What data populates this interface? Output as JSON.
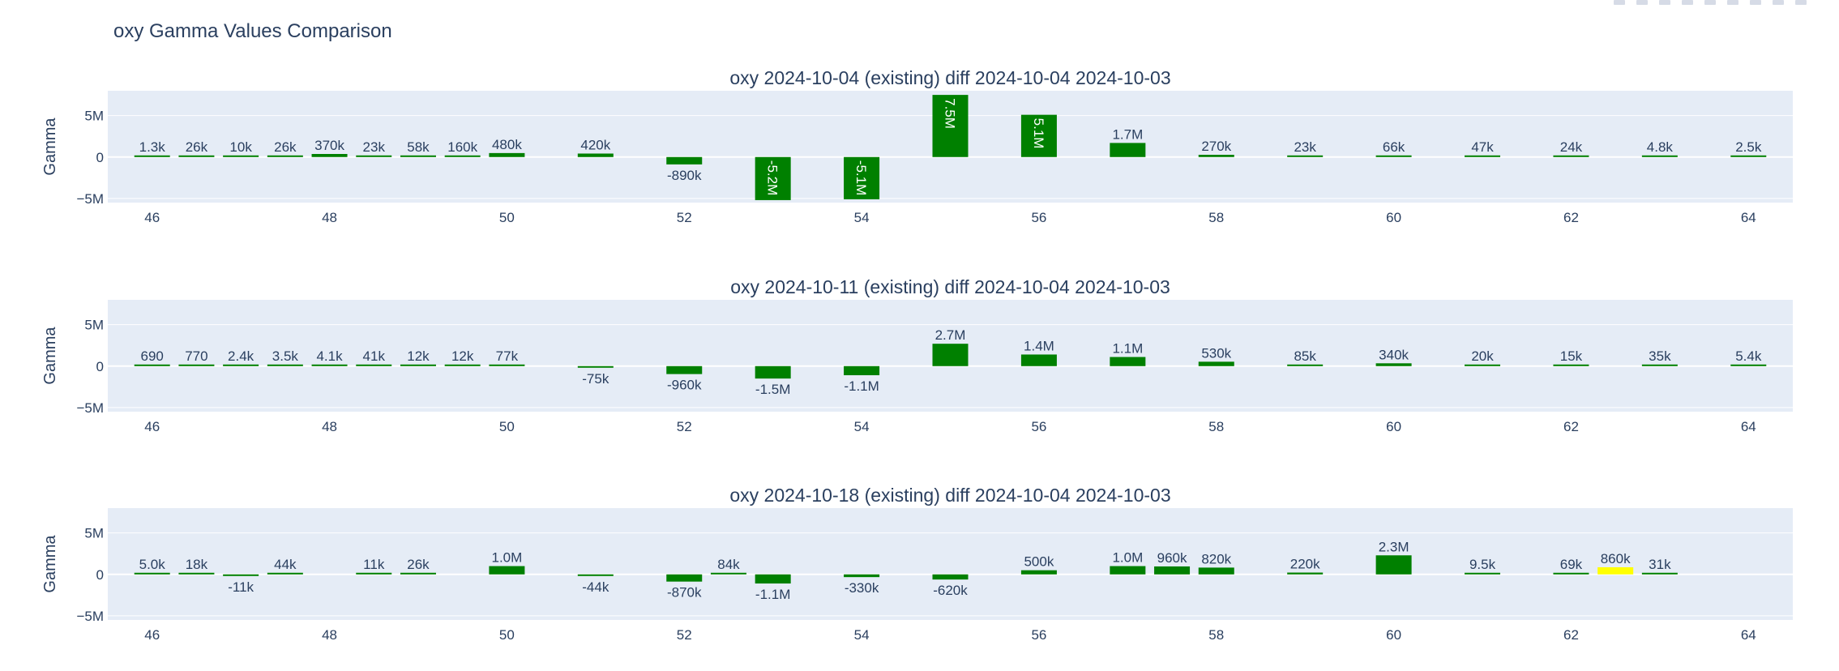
{
  "title": "oxy Gamma Values Comparison",
  "colors": {
    "bar": "#008000",
    "highlight": "#ffff00",
    "plot_bg": "#e5ecf6",
    "grid": "#ffffff",
    "text": "#2a3f5f",
    "tick": "#506784"
  },
  "toolbar": {
    "icons": [
      "camera-icon",
      "zoom-icon",
      "pan-icon",
      "select-icon",
      "lasso-icon",
      "zoom-in-icon",
      "zoom-out-icon",
      "autoscale-icon",
      "reset-icon"
    ]
  },
  "chart_data": [
    {
      "type": "bar",
      "title": "oxy 2024-10-04 (existing) diff 2024-10-04 2024-10-03",
      "ylabel": "Gamma",
      "xlabel": "",
      "xlim": [
        45.5,
        64.5
      ],
      "ylim": [
        -5500000,
        8000000
      ],
      "xticks": [
        46,
        48,
        50,
        52,
        54,
        56,
        58,
        60,
        62,
        64
      ],
      "yticks": [
        {
          "value": 5000000,
          "label": "5M"
        },
        {
          "value": 0,
          "label": "0"
        },
        {
          "value": -5000000,
          "label": "−5M"
        }
      ],
      "grid": true,
      "bars": [
        {
          "x": 46,
          "value": 1300,
          "label": "1.3k"
        },
        {
          "x": 46.5,
          "value": 26000,
          "label": "26k"
        },
        {
          "x": 47,
          "value": 10000,
          "label": "10k"
        },
        {
          "x": 47.5,
          "value": 26000,
          "label": "26k"
        },
        {
          "x": 48,
          "value": 370000,
          "label": "370k"
        },
        {
          "x": 48.5,
          "value": 23000,
          "label": "23k"
        },
        {
          "x": 49,
          "value": 58000,
          "label": "58k"
        },
        {
          "x": 49.5,
          "value": 160000,
          "label": "160k"
        },
        {
          "x": 50,
          "value": 480000,
          "label": "480k"
        },
        {
          "x": 51,
          "value": 420000,
          "label": "420k"
        },
        {
          "x": 52,
          "value": -890000,
          "label": "-890k"
        },
        {
          "x": 53,
          "value": -5200000,
          "label": "-5.2M"
        },
        {
          "x": 54,
          "value": -5100000,
          "label": "-5.1M"
        },
        {
          "x": 55,
          "value": 7500000,
          "label": "7.5M"
        },
        {
          "x": 56,
          "value": 5100000,
          "label": "5.1M"
        },
        {
          "x": 57,
          "value": 1700000,
          "label": "1.7M"
        },
        {
          "x": 58,
          "value": 270000,
          "label": "270k"
        },
        {
          "x": 59,
          "value": 23000,
          "label": "23k"
        },
        {
          "x": 60,
          "value": 66000,
          "label": "66k"
        },
        {
          "x": 61,
          "value": 47000,
          "label": "47k"
        },
        {
          "x": 62,
          "value": 24000,
          "label": "24k"
        },
        {
          "x": 63,
          "value": 4800,
          "label": "4.8k"
        },
        {
          "x": 64,
          "value": 2500,
          "label": "2.5k"
        }
      ]
    },
    {
      "type": "bar",
      "title": "oxy 2024-10-11 (existing) diff 2024-10-04 2024-10-03",
      "ylabel": "Gamma",
      "xlabel": "",
      "xlim": [
        45.5,
        64.5
      ],
      "ylim": [
        -5500000,
        8000000
      ],
      "xticks": [
        46,
        48,
        50,
        52,
        54,
        56,
        58,
        60,
        62,
        64
      ],
      "yticks": [
        {
          "value": 5000000,
          "label": "5M"
        },
        {
          "value": 0,
          "label": "0"
        },
        {
          "value": -5000000,
          "label": "−5M"
        }
      ],
      "grid": true,
      "bars": [
        {
          "x": 46,
          "value": 690,
          "label": "690"
        },
        {
          "x": 46.5,
          "value": 770,
          "label": "770"
        },
        {
          "x": 47,
          "value": 2400,
          "label": "2.4k"
        },
        {
          "x": 47.5,
          "value": 3500,
          "label": "3.5k"
        },
        {
          "x": 48,
          "value": 4100,
          "label": "4.1k"
        },
        {
          "x": 48.5,
          "value": 41000,
          "label": "41k"
        },
        {
          "x": 49,
          "value": 12000,
          "label": "12k"
        },
        {
          "x": 49.5,
          "value": 12000,
          "label": "12k"
        },
        {
          "x": 50,
          "value": 77000,
          "label": "77k"
        },
        {
          "x": 51,
          "value": -75000,
          "label": "-75k"
        },
        {
          "x": 52,
          "value": -960000,
          "label": "-960k"
        },
        {
          "x": 53,
          "value": -1500000,
          "label": "-1.5M"
        },
        {
          "x": 54,
          "value": -1100000,
          "label": "-1.1M"
        },
        {
          "x": 55,
          "value": 2700000,
          "label": "2.7M"
        },
        {
          "x": 56,
          "value": 1400000,
          "label": "1.4M"
        },
        {
          "x": 57,
          "value": 1100000,
          "label": "1.1M"
        },
        {
          "x": 58,
          "value": 530000,
          "label": "530k"
        },
        {
          "x": 59,
          "value": 85000,
          "label": "85k"
        },
        {
          "x": 60,
          "value": 340000,
          "label": "340k"
        },
        {
          "x": 61,
          "value": 20000,
          "label": "20k"
        },
        {
          "x": 62,
          "value": 15000,
          "label": "15k"
        },
        {
          "x": 63,
          "value": 35000,
          "label": "35k"
        },
        {
          "x": 64,
          "value": 5400,
          "label": "5.4k"
        }
      ]
    },
    {
      "type": "bar",
      "title": "oxy 2024-10-18 (existing) diff 2024-10-04 2024-10-03",
      "ylabel": "Gamma",
      "xlabel": "",
      "xlim": [
        45.5,
        64.5
      ],
      "ylim": [
        -5500000,
        8000000
      ],
      "xticks": [
        46,
        48,
        50,
        52,
        54,
        56,
        58,
        60,
        62,
        64
      ],
      "yticks": [
        {
          "value": 5000000,
          "label": "5M"
        },
        {
          "value": 0,
          "label": "0"
        },
        {
          "value": -5000000,
          "label": "−5M"
        }
      ],
      "grid": true,
      "bars": [
        {
          "x": 46,
          "value": 5000,
          "label": "5.0k"
        },
        {
          "x": 46.5,
          "value": 18000,
          "label": "18k"
        },
        {
          "x": 47,
          "value": -11000,
          "label": "-11k"
        },
        {
          "x": 47.5,
          "value": 44000,
          "label": "44k"
        },
        {
          "x": 48.5,
          "value": 11000,
          "label": "11k"
        },
        {
          "x": 49,
          "value": 26000,
          "label": "26k"
        },
        {
          "x": 50,
          "value": 1000000,
          "label": "1.0M"
        },
        {
          "x": 51,
          "value": -44000,
          "label": "-44k"
        },
        {
          "x": 52,
          "value": -870000,
          "label": "-870k"
        },
        {
          "x": 52.5,
          "value": 84000,
          "label": "84k"
        },
        {
          "x": 53,
          "value": -1100000,
          "label": "-1.1M"
        },
        {
          "x": 54,
          "value": -330000,
          "label": "-330k"
        },
        {
          "x": 55,
          "value": -620000,
          "label": "-620k"
        },
        {
          "x": 56,
          "value": 500000,
          "label": "500k"
        },
        {
          "x": 57,
          "value": 1000000,
          "label": "1.0M"
        },
        {
          "x": 57.5,
          "value": 960000,
          "label": "960k"
        },
        {
          "x": 58,
          "value": 820000,
          "label": "820k"
        },
        {
          "x": 59,
          "value": 220000,
          "label": "220k"
        },
        {
          "x": 60,
          "value": 2300000,
          "label": "2.3M"
        },
        {
          "x": 61,
          "value": 9500,
          "label": "9.5k"
        },
        {
          "x": 62,
          "value": 69000,
          "label": "69k"
        },
        {
          "x": 62.5,
          "value": 860000,
          "label": "860k",
          "highlight": true
        },
        {
          "x": 63,
          "value": 31000,
          "label": "31k"
        }
      ]
    }
  ]
}
